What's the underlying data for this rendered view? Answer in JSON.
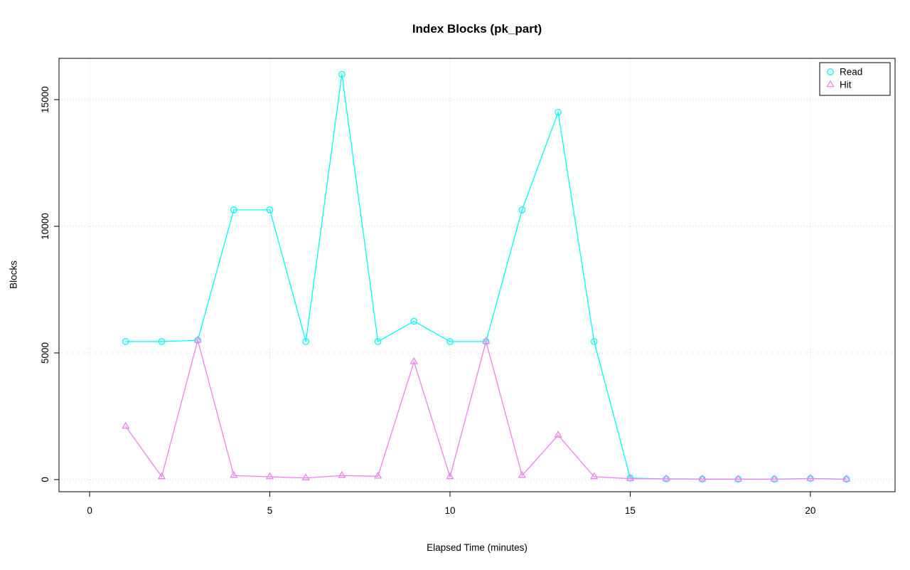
{
  "chart_data": {
    "type": "line",
    "title": "Index Blocks (pk_part)",
    "xlabel": "Elapsed Time (minutes)",
    "ylabel": "Blocks",
    "x": [
      1,
      2,
      3,
      4,
      5,
      6,
      7,
      8,
      9,
      10,
      11,
      12,
      13,
      14,
      15,
      16,
      17,
      18,
      19,
      20,
      21
    ],
    "series": [
      {
        "name": "Read",
        "marker": "circle",
        "color": "#00FFFF",
        "values": [
          5450,
          5450,
          5500,
          10650,
          10650,
          5450,
          16000,
          5450,
          6250,
          5450,
          5450,
          10650,
          14500,
          5450,
          60,
          25,
          20,
          15,
          15,
          40,
          15
        ]
      },
      {
        "name": "Hit",
        "marker": "triangle",
        "color": "#EE82EE",
        "values": [
          2100,
          110,
          5500,
          160,
          110,
          60,
          160,
          130,
          4650,
          110,
          5450,
          160,
          1750,
          110,
          35,
          25,
          20,
          15,
          15,
          40,
          15
        ]
      }
    ],
    "xticks": [
      0,
      5,
      10,
      15,
      20
    ],
    "yticks": [
      0,
      5000,
      10000,
      15000
    ],
    "xlim": [
      -0.85,
      22.35
    ],
    "ylim": [
      -480,
      16630
    ],
    "grid": true,
    "grid_style": "dotted",
    "grid_color": "#D3D3D3",
    "legend": {
      "position": "top-right",
      "labels": [
        "Read",
        "Hit"
      ]
    },
    "box_color": "#000000"
  }
}
